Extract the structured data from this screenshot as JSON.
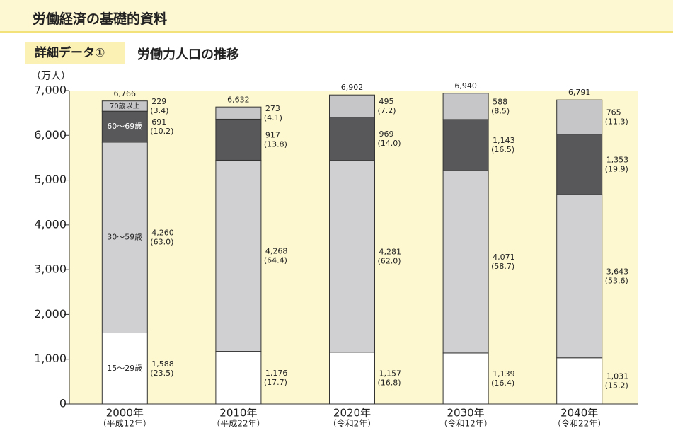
{
  "header": {
    "title": "労働経済の基礎的資料",
    "tag": "詳細データ①",
    "subtitle": "労働力人口の推移"
  },
  "chart_data": {
    "type": "stacked-bar",
    "y_label": "（万人）",
    "categories": [
      "2000年",
      "2010年",
      "2020年",
      "2030年",
      "2040年"
    ],
    "category_sublabels": [
      "（平成12年）",
      "（平成22年）",
      "（令和2年）",
      "（令和12年）",
      "（令和22年）"
    ],
    "ylim": [
      0,
      7000
    ],
    "yticks": [
      0,
      {
        "value": 1000,
        "label": "1,000"
      },
      {
        "value": 2000,
        "label": "2,000"
      },
      {
        "value": 3000,
        "label": "3,000"
      },
      {
        "value": 4000,
        "label": "4,000"
      },
      {
        "value": 5000,
        "label": "5,000"
      },
      {
        "value": 6000,
        "label": "6,000"
      },
      {
        "value": 7000,
        "label": "7,000"
      }
    ],
    "series": [
      {
        "name": "15～29歳",
        "color": "#ffffff",
        "values": [
          1588,
          1176,
          1157,
          1139,
          1031
        ],
        "value_labels": [
          "1,588",
          "1,176",
          "1,157",
          "1,139",
          "1,031"
        ],
        "share_labels": [
          "(23.5)",
          "(17.7)",
          "(16.8)",
          "(16.4)",
          "(15.2)"
        ]
      },
      {
        "name": "30～59歳",
        "color": "#d0d0d2",
        "values": [
          4260,
          4268,
          4281,
          4071,
          3643
        ],
        "value_labels": [
          "4,260",
          "4,268",
          "4,281",
          "4,071",
          "3,643"
        ],
        "share_labels": [
          "(63.0)",
          "(64.4)",
          "(62.0)",
          "(58.7)",
          "(53.6)"
        ]
      },
      {
        "name": "60～69歳",
        "color": "#58585a",
        "values": [
          691,
          917,
          969,
          1143,
          1353
        ],
        "value_labels": [
          "691",
          "917",
          "969",
          "1,143",
          "1,353"
        ],
        "share_labels": [
          "(10.2)",
          "(13.8)",
          "(14.0)",
          "(16.5)",
          "(19.9)"
        ]
      },
      {
        "name": "70歳以上",
        "color": "#c6c6c8",
        "values": [
          229,
          273,
          495,
          588,
          765
        ],
        "value_labels": [
          "229",
          "273",
          "495",
          "588",
          "765"
        ],
        "share_labels": [
          "(3.4)",
          "(4.1)",
          "(7.2)",
          "(8.5)",
          "(11.3)"
        ]
      }
    ],
    "totals": [
      6766,
      6632,
      6902,
      6940,
      6791
    ],
    "total_labels": [
      "6,766",
      "6,632",
      "6,902",
      "6,940",
      "6,791"
    ]
  }
}
